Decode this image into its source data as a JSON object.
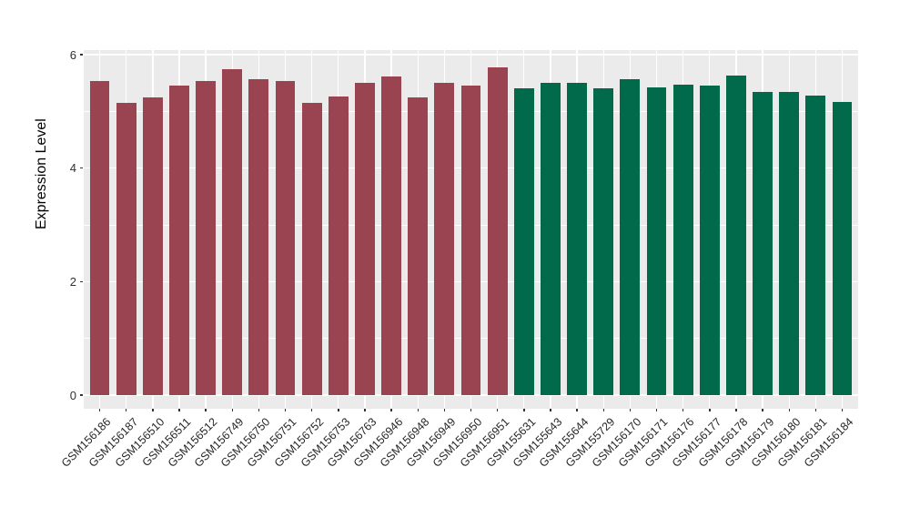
{
  "chart_data": {
    "type": "bar",
    "title": "",
    "xlabel": "",
    "ylabel": "Expression Level",
    "ylim": [
      0,
      6.08
    ],
    "yticks": [
      0,
      2,
      4,
      6
    ],
    "yticks_minor": [
      1,
      3,
      5
    ],
    "grid": "major and minor horizontal white lines, vertical white line at each category center, on gray panel",
    "legend_position": "none",
    "panel_background": "#EBEBEB",
    "grid_color": "#FFFFFF",
    "axis_text_color": "#303030",
    "group_colors": [
      "#9A4351",
      "#006A4B"
    ],
    "categories": [
      "GSM156186",
      "GSM156187",
      "GSM156510",
      "GSM156511",
      "GSM156512",
      "GSM156749",
      "GSM156750",
      "GSM156751",
      "GSM156752",
      "GSM156753",
      "GSM156763",
      "GSM156946",
      "GSM156948",
      "GSM156949",
      "GSM156950",
      "GSM156951",
      "GSM155631",
      "GSM155643",
      "GSM155644",
      "GSM155729",
      "GSM156170",
      "GSM156171",
      "GSM156176",
      "GSM156177",
      "GSM156178",
      "GSM156179",
      "GSM156180",
      "GSM156181",
      "GSM156184"
    ],
    "values": [
      5.54,
      5.15,
      5.25,
      5.45,
      5.54,
      5.74,
      5.56,
      5.54,
      5.15,
      5.27,
      5.51,
      5.62,
      5.25,
      5.5,
      5.46,
      5.77,
      5.41,
      5.5,
      5.5,
      5.41,
      5.56,
      5.43,
      5.47,
      5.45,
      5.64,
      5.34,
      5.34,
      5.28,
      5.16
    ],
    "groups": [
      0,
      0,
      0,
      0,
      0,
      0,
      0,
      0,
      0,
      0,
      0,
      0,
      0,
      0,
      0,
      0,
      1,
      1,
      1,
      1,
      1,
      1,
      1,
      1,
      1,
      1,
      1,
      1,
      1
    ]
  }
}
